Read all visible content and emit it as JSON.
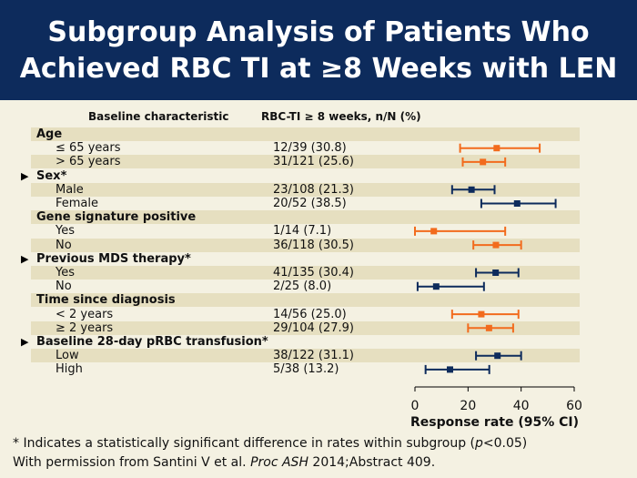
{
  "header": {
    "title_line1": "Subgroup Analysis of Patients Who",
    "title_line2": "Achieved RBC TI at ≥8 Weeks with LEN"
  },
  "table": {
    "col1_header": "Baseline characteristic",
    "col2_header": "RBC-TI ≥ 8 weeks, n/N (%)"
  },
  "colors": {
    "orange": "#f26b1d",
    "navy": "#0d2b5c",
    "band": "#e6dfc0"
  },
  "footnote": {
    "prefix": "* Indicates a statistically significant difference in rates within subgroup (",
    "p": "p",
    "suffix": "<0.05)"
  },
  "credit": {
    "prefix": "With permission from Santini V et al. ",
    "journal": "Proc ASH",
    "suffix": " 2014;Abstract 409."
  },
  "chart_data": {
    "type": "forest",
    "xlabel": "Response rate (95% CI)",
    "xlim": [
      0,
      60
    ],
    "xticks": [
      0,
      20,
      40,
      60
    ],
    "rows": [
      {
        "label": "Age",
        "header": true,
        "significant": false
      },
      {
        "label": "≤ 65 years",
        "value": "12/39 (30.8)",
        "est": 30.8,
        "lo": 17,
        "hi": 47,
        "color": "orange"
      },
      {
        "label": "> 65 years",
        "value": "31/121 (25.6)",
        "est": 25.6,
        "lo": 18,
        "hi": 34,
        "color": "orange"
      },
      {
        "label": "Sex*",
        "header": true,
        "significant": true
      },
      {
        "label": "Male",
        "value": "23/108 (21.3)",
        "est": 21.3,
        "lo": 14,
        "hi": 30,
        "color": "navy"
      },
      {
        "label": "Female",
        "value": "20/52 (38.5)",
        "est": 38.5,
        "lo": 25,
        "hi": 53,
        "color": "navy"
      },
      {
        "label": "Gene signature positive",
        "header": true,
        "significant": false
      },
      {
        "label": "Yes",
        "value": "1/14 (7.1)",
        "est": 7.1,
        "lo": 0,
        "hi": 34,
        "color": "orange"
      },
      {
        "label": "No",
        "value": "36/118 (30.5)",
        "est": 30.5,
        "lo": 22,
        "hi": 40,
        "color": "orange"
      },
      {
        "label": "Previous MDS therapy*",
        "header": true,
        "significant": true
      },
      {
        "label": "Yes",
        "value": "41/135 (30.4)",
        "est": 30.4,
        "lo": 23,
        "hi": 39,
        "color": "navy"
      },
      {
        "label": "No",
        "value": "2/25 (8.0)",
        "est": 8.0,
        "lo": 1,
        "hi": 26,
        "color": "navy"
      },
      {
        "label": "Time since diagnosis",
        "header": true,
        "significant": false
      },
      {
        "label": "< 2 years",
        "value": "14/56 (25.0)",
        "est": 25.0,
        "lo": 14,
        "hi": 39,
        "color": "orange"
      },
      {
        "label": "≥ 2 years",
        "value": "29/104 (27.9)",
        "est": 27.9,
        "lo": 20,
        "hi": 37,
        "color": "orange"
      },
      {
        "label": "Baseline 28-day pRBC transfusion*",
        "header": true,
        "significant": true
      },
      {
        "label": "Low",
        "value": "38/122 (31.1)",
        "est": 31.1,
        "lo": 23,
        "hi": 40,
        "color": "navy"
      },
      {
        "label": "High",
        "value": "5/38 (13.2)",
        "est": 13.2,
        "lo": 4,
        "hi": 28,
        "color": "navy"
      }
    ]
  }
}
